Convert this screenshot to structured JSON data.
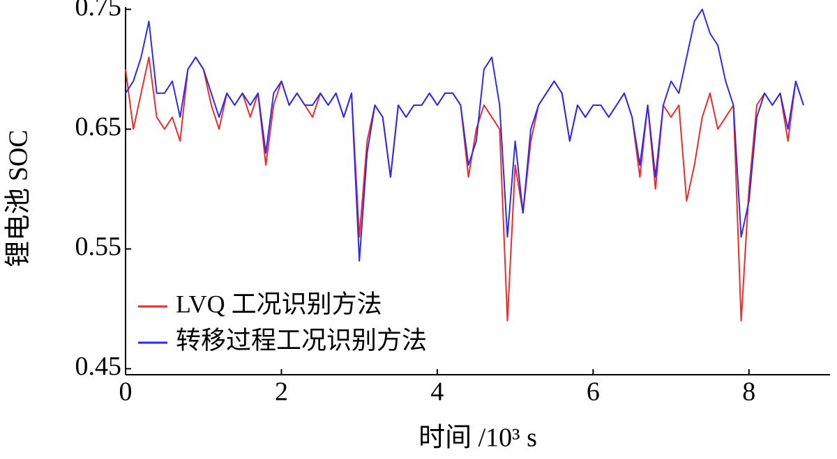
{
  "chart_data": {
    "type": "line",
    "x_label": "时间 /10³ s",
    "y_label": "锂电池 SOC",
    "xlim": [
      0,
      9.04
    ],
    "xticks": [
      0,
      2,
      4,
      6,
      8
    ],
    "ylim": [
      0.445,
      0.752
    ],
    "yticks": [
      0.45,
      0.55,
      0.65,
      0.75
    ],
    "legend": "lower left",
    "x": [
      0,
      0.1,
      0.2,
      0.3,
      0.4,
      0.5,
      0.6,
      0.7,
      0.8,
      0.9,
      1.0,
      1.1,
      1.2,
      1.3,
      1.4,
      1.5,
      1.6,
      1.7,
      1.8,
      1.9,
      2.0,
      2.1,
      2.2,
      2.3,
      2.4,
      2.5,
      2.6,
      2.7,
      2.8,
      2.9,
      3.0,
      3.1,
      3.2,
      3.3,
      3.4,
      3.5,
      3.6,
      3.7,
      3.8,
      3.9,
      4.0,
      4.1,
      4.2,
      4.3,
      4.4,
      4.5,
      4.6,
      4.7,
      4.8,
      4.9,
      5.0,
      5.1,
      5.2,
      5.3,
      5.4,
      5.5,
      5.6,
      5.7,
      5.8,
      5.9,
      6.0,
      6.1,
      6.2,
      6.3,
      6.4,
      6.5,
      6.6,
      6.7,
      6.8,
      6.9,
      7.0,
      7.1,
      7.2,
      7.3,
      7.4,
      7.5,
      7.6,
      7.7,
      7.8,
      7.9,
      8.0,
      8.1,
      8.2,
      8.3,
      8.4,
      8.5,
      8.6,
      8.7
    ],
    "series": [
      {
        "name": "LVQ 工况识别方法",
        "color": "#ee2a2a",
        "values": [
          0.7,
          0.65,
          0.68,
          0.71,
          0.66,
          0.65,
          0.66,
          0.64,
          0.7,
          0.71,
          0.7,
          0.67,
          0.65,
          0.68,
          0.67,
          0.68,
          0.66,
          0.68,
          0.62,
          0.67,
          0.69,
          0.67,
          0.68,
          0.67,
          0.66,
          0.68,
          0.67,
          0.68,
          0.66,
          0.68,
          0.56,
          0.64,
          0.67,
          0.66,
          0.61,
          0.67,
          0.66,
          0.67,
          0.67,
          0.68,
          0.67,
          0.68,
          0.68,
          0.67,
          0.61,
          0.65,
          0.67,
          0.66,
          0.65,
          0.49,
          0.62,
          0.58,
          0.64,
          0.67,
          0.68,
          0.69,
          0.68,
          0.64,
          0.67,
          0.66,
          0.67,
          0.67,
          0.66,
          0.67,
          0.68,
          0.66,
          0.61,
          0.67,
          0.6,
          0.67,
          0.66,
          0.67,
          0.59,
          0.62,
          0.66,
          0.68,
          0.65,
          0.66,
          0.67,
          0.49,
          0.6,
          0.67,
          0.68,
          0.67,
          0.68,
          0.64,
          0.69,
          0.67
        ]
      },
      {
        "name": "转移过程工况识别方法",
        "color": "#2b2bf0",
        "values": [
          0.68,
          0.69,
          0.71,
          0.74,
          0.68,
          0.68,
          0.69,
          0.66,
          0.7,
          0.71,
          0.7,
          0.68,
          0.66,
          0.68,
          0.67,
          0.68,
          0.67,
          0.68,
          0.63,
          0.68,
          0.69,
          0.67,
          0.68,
          0.67,
          0.67,
          0.68,
          0.67,
          0.68,
          0.66,
          0.68,
          0.54,
          0.63,
          0.67,
          0.66,
          0.61,
          0.67,
          0.66,
          0.67,
          0.67,
          0.68,
          0.67,
          0.68,
          0.68,
          0.67,
          0.62,
          0.64,
          0.7,
          0.71,
          0.67,
          0.56,
          0.64,
          0.58,
          0.65,
          0.67,
          0.68,
          0.69,
          0.68,
          0.64,
          0.67,
          0.66,
          0.67,
          0.67,
          0.66,
          0.67,
          0.68,
          0.66,
          0.62,
          0.67,
          0.61,
          0.67,
          0.69,
          0.68,
          0.71,
          0.74,
          0.75,
          0.73,
          0.72,
          0.69,
          0.67,
          0.56,
          0.59,
          0.66,
          0.68,
          0.67,
          0.68,
          0.65,
          0.69,
          0.67
        ]
      }
    ]
  }
}
